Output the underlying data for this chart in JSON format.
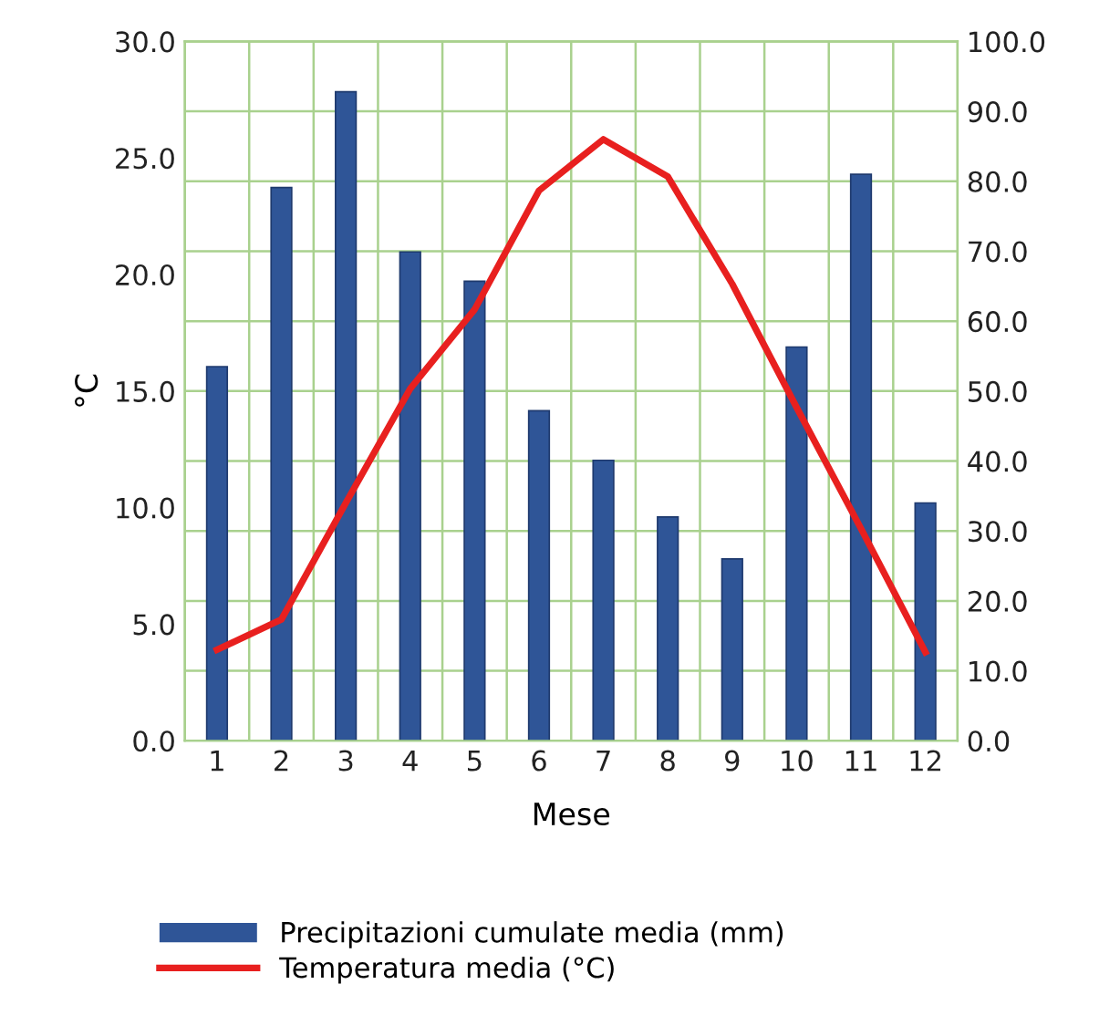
{
  "chart_data": {
    "type": "bar",
    "xlabel": "Mese",
    "ylabel": "°C",
    "categories": [
      "1",
      "2",
      "3",
      "4",
      "5",
      "6",
      "7",
      "8",
      "9",
      "10",
      "11",
      "12"
    ],
    "series": [
      {
        "name": "Precipitazioni cumulate media (mm)",
        "axis": "y2",
        "color": "#2f5597",
        "values": [
          53.5,
          79.1,
          92.8,
          69.9,
          65.7,
          47.2,
          40.1,
          32.0,
          26.0,
          56.3,
          81.0,
          34.0
        ]
      },
      {
        "name": "Temperatura media (°C)",
        "type": "line",
        "color": "#e8201f",
        "values": [
          3.9,
          5.2,
          10.2,
          15.1,
          18.5,
          23.6,
          25.8,
          24.2,
          19.6,
          14.3,
          9.1,
          3.8
        ]
      }
    ],
    "ylim": [
      0,
      30
    ],
    "yticks": [
      {
        "value": 0,
        "label": "0.0"
      },
      {
        "value": 5,
        "label": "5.0"
      },
      {
        "value": 10,
        "label": "10.0"
      },
      {
        "value": 15,
        "label": "15.0"
      },
      {
        "value": 20,
        "label": "20.0"
      },
      {
        "value": 25,
        "label": "25.0"
      },
      {
        "value": 30,
        "label": "30.0"
      }
    ],
    "y2lim": [
      0,
      100
    ],
    "y2ticks": [
      {
        "value": 0,
        "label": "0.0"
      },
      {
        "value": 10,
        "label": "10.0"
      },
      {
        "value": 20,
        "label": "20.0"
      },
      {
        "value": 30,
        "label": "30.0"
      },
      {
        "value": 40,
        "label": "40.0"
      },
      {
        "value": 50,
        "label": "50.0"
      },
      {
        "value": 60,
        "label": "60.0"
      },
      {
        "value": 70,
        "label": "70.0"
      },
      {
        "value": 80,
        "label": "80.0"
      },
      {
        "value": 90,
        "label": "90.0"
      },
      {
        "value": 100,
        "label": "100.0"
      }
    ],
    "grid": true,
    "legend": "bottom",
    "marker": "none",
    "line_style": "solid"
  }
}
